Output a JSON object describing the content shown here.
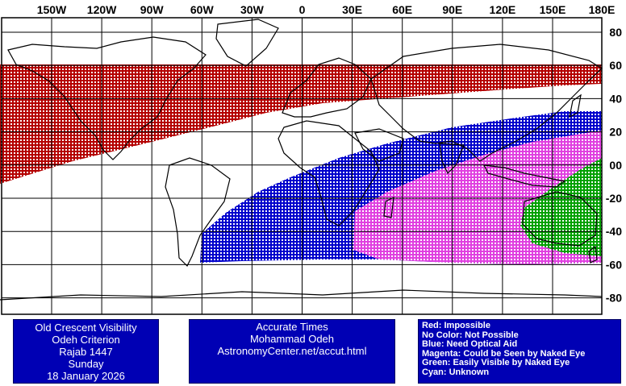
{
  "map": {
    "lon_labels": [
      "150W",
      "120W",
      "90W",
      "60W",
      "30W",
      "0",
      "30E",
      "60E",
      "90E",
      "120E",
      "150E",
      "180E"
    ],
    "lat_labels": [
      "80",
      "60",
      "40",
      "20",
      "00",
      "-20",
      "-40",
      "-60",
      "-80"
    ],
    "zone_colors": {
      "impossible": "#b40000",
      "optical_aid": "#0000cc",
      "naked_eye_possible": "#e040e0",
      "easily_visible": "#00a000"
    },
    "grid_color": "#000000",
    "coast_color": "#000000"
  },
  "title_box": {
    "line1": "Old Crescent Visibility",
    "line2": "Odeh Criterion",
    "line3": "Rajab 1447",
    "line4": "Sunday",
    "line5": "18 January 2026"
  },
  "credit_box": {
    "line1": "Accurate Times",
    "line2": "Mohammad Odeh",
    "line3": "AstronomyCenter.net/accut.html"
  },
  "legend_box": {
    "red": "Red: Impossible",
    "none": "No Color: Not Possible",
    "blue": "Blue: Need Optical Aid",
    "magenta": "Magenta: Could be Seen by Naked Eye",
    "green": "Green: Easily Visible by Naked Eye",
    "cyan": "Cyan: Unknown"
  },
  "box_color": "#0000b4"
}
